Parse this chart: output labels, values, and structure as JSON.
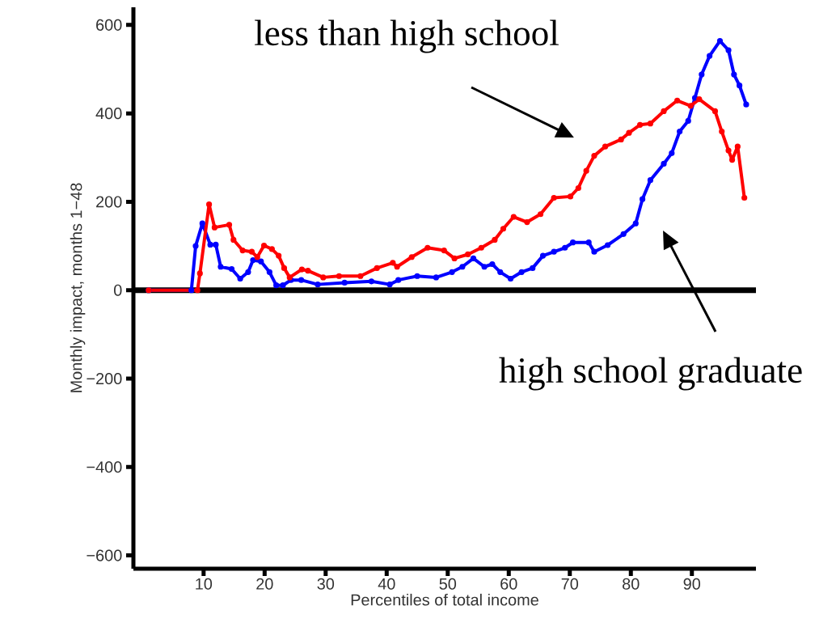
{
  "chart_data": {
    "type": "line",
    "xlabel": "Percentiles of total income",
    "ylabel": "Monthly impact, months 1−48",
    "xlim": [
      -1.5,
      100.5
    ],
    "ylim": [
      -630,
      640
    ],
    "xticks": [
      10,
      20,
      30,
      40,
      50,
      60,
      70,
      80,
      90
    ],
    "yticks": [
      {
        "value": -600,
        "label": "−600"
      },
      {
        "value": -400,
        "label": "−400"
      },
      {
        "value": -200,
        "label": "−200"
      },
      0,
      200,
      400,
      600
    ],
    "marker": "circle",
    "line_style": "solid",
    "ref_lines": [
      {
        "axis": "y",
        "value": 0,
        "color": "#000000"
      }
    ],
    "annotations": [
      "less than high school",
      "high school graduate"
    ],
    "series": [
      {
        "color": "#0000ff",
        "x": [
          1,
          8,
          8.7,
          9.8,
          11.1,
          12,
          12.8,
          14.6,
          16,
          17.3,
          18.1,
          19.4,
          20.8,
          21.9,
          23,
          24.3,
          26,
          28.7,
          33.1,
          37.5,
          40.5,
          41.9,
          45,
          48.1,
          50.7,
          52.4,
          54.2,
          56,
          57.3,
          58.6,
          60.3,
          62.1,
          63.9,
          65.6,
          67.4,
          69.2,
          70.5,
          73.1,
          74,
          76.2,
          78.8,
          80.8,
          81.9,
          83.2,
          85.4,
          86.7,
          88,
          89.4,
          90.5,
          91.6,
          92.9,
          94.6,
          96,
          96.9,
          97.8,
          98.9
        ],
        "values": [
          0,
          0,
          100,
          151,
          103,
          103,
          53,
          48,
          26,
          41,
          68,
          65,
          41,
          11,
          11,
          23,
          23,
          13,
          17,
          20,
          13,
          23,
          32,
          29,
          41,
          53,
          72,
          53,
          59,
          41,
          26,
          41,
          50,
          78,
          87,
          96,
          108,
          108,
          87,
          102,
          127,
          151,
          206,
          249,
          286,
          310,
          359,
          383,
          435,
          488,
          530,
          564,
          543,
          488,
          463,
          420
        ]
      },
      {
        "color": "#ff0000",
        "x": [
          1,
          9,
          9.4,
          10.9,
          11.8,
          14.2,
          14.9,
          16.4,
          17.9,
          18.8,
          19.9,
          21.2,
          22.3,
          23.2,
          24.1,
          26.1,
          27.1,
          29.6,
          32.2,
          35.7,
          38.4,
          41,
          41.7,
          44.1,
          46.7,
          49.4,
          51.1,
          53.3,
          55.5,
          57.7,
          59.1,
          60.8,
          63,
          65.2,
          67.4,
          70.1,
          71.4,
          72.7,
          74,
          75.8,
          78.4,
          79.7,
          81.5,
          83.2,
          85.4,
          87.6,
          89.8,
          91.2,
          93.8,
          94.9,
          96,
          96.6,
          97.5,
          98.6
        ],
        "values": [
          0,
          0,
          38,
          194,
          142,
          148,
          114,
          90,
          87,
          75,
          101,
          93,
          78,
          50,
          29,
          47,
          44,
          29,
          32,
          32,
          50,
          62,
          53,
          75,
          96,
          90,
          72,
          81,
          96,
          114,
          139,
          166,
          154,
          172,
          209,
          212,
          231,
          270,
          304,
          325,
          341,
          356,
          374,
          377,
          405,
          429,
          417,
          432,
          405,
          359,
          316,
          295,
          325,
          209
        ]
      }
    ]
  }
}
